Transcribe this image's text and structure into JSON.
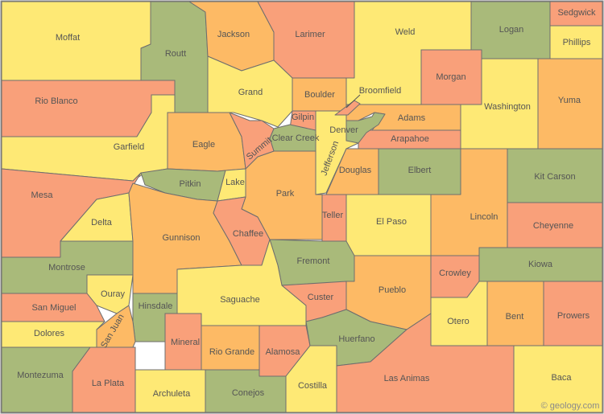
{
  "palette": {
    "Y": "#FEE975",
    "O": "#FDBA65",
    "S": "#F9A07A",
    "G": "#A9BA7A",
    "border": "#6e6e6e",
    "label": "#555555"
  },
  "copyright": "© geology.com",
  "counties": [
    {
      "name": "Moffat",
      "fill": "Y"
    },
    {
      "name": "Routt",
      "fill": "G"
    },
    {
      "name": "Jackson",
      "fill": "O"
    },
    {
      "name": "Larimer",
      "fill": "S"
    },
    {
      "name": "Weld",
      "fill": "Y"
    },
    {
      "name": "Logan",
      "fill": "G"
    },
    {
      "name": "Sedgwick",
      "fill": "S"
    },
    {
      "name": "Phillips",
      "fill": "Y"
    },
    {
      "name": "Morgan",
      "fill": "S"
    },
    {
      "name": "Yuma",
      "fill": "O"
    },
    {
      "name": "Washington",
      "fill": "Y"
    },
    {
      "name": "Rio Blanco",
      "fill": "S"
    },
    {
      "name": "Garfield",
      "fill": "Y"
    },
    {
      "name": "Grand",
      "fill": "Y"
    },
    {
      "name": "Boulder",
      "fill": "O"
    },
    {
      "name": "Broomfield",
      "fill": "S"
    },
    {
      "name": "Gilpin",
      "fill": "S"
    },
    {
      "name": "Clear Creek",
      "fill": "G"
    },
    {
      "name": "Jefferson",
      "fill": "Y"
    },
    {
      "name": "Denver",
      "fill": "G"
    },
    {
      "name": "Adams",
      "fill": "O"
    },
    {
      "name": "Arapahoe",
      "fill": "S"
    },
    {
      "name": "Eagle",
      "fill": "O"
    },
    {
      "name": "Summit",
      "fill": "S"
    },
    {
      "name": "Douglas",
      "fill": "O"
    },
    {
      "name": "Elbert",
      "fill": "G"
    },
    {
      "name": "Kit Carson",
      "fill": "G"
    },
    {
      "name": "Mesa",
      "fill": "S"
    },
    {
      "name": "Pitkin",
      "fill": "G"
    },
    {
      "name": "Lake",
      "fill": "Y"
    },
    {
      "name": "Park",
      "fill": "O"
    },
    {
      "name": "Teller",
      "fill": "S"
    },
    {
      "name": "El Paso",
      "fill": "Y"
    },
    {
      "name": "Lincoln",
      "fill": "O"
    },
    {
      "name": "Cheyenne",
      "fill": "S"
    },
    {
      "name": "Delta",
      "fill": "Y"
    },
    {
      "name": "Gunnison",
      "fill": "O"
    },
    {
      "name": "Chaffee",
      "fill": "S"
    },
    {
      "name": "Fremont",
      "fill": "G"
    },
    {
      "name": "Montrose",
      "fill": "G"
    },
    {
      "name": "Ouray",
      "fill": "Y"
    },
    {
      "name": "San Miguel",
      "fill": "S"
    },
    {
      "name": "Hinsdale",
      "fill": "G"
    },
    {
      "name": "Saguache",
      "fill": "Y"
    },
    {
      "name": "Custer",
      "fill": "S"
    },
    {
      "name": "Pueblo",
      "fill": "O"
    },
    {
      "name": "Crowley",
      "fill": "S"
    },
    {
      "name": "Kiowa",
      "fill": "G"
    },
    {
      "name": "Dolores",
      "fill": "Y"
    },
    {
      "name": "San Juan",
      "fill": "O"
    },
    {
      "name": "Mineral",
      "fill": "S"
    },
    {
      "name": "Rio Grande",
      "fill": "O"
    },
    {
      "name": "Alamosa",
      "fill": "S"
    },
    {
      "name": "Huerfano",
      "fill": "G"
    },
    {
      "name": "Otero",
      "fill": "Y"
    },
    {
      "name": "Bent",
      "fill": "O"
    },
    {
      "name": "Prowers",
      "fill": "S"
    },
    {
      "name": "Montezuma",
      "fill": "G"
    },
    {
      "name": "La Plata",
      "fill": "S"
    },
    {
      "name": "Archuleta",
      "fill": "Y"
    },
    {
      "name": "Conejos",
      "fill": "G"
    },
    {
      "name": "Costilla",
      "fill": "Y"
    },
    {
      "name": "Las Animas",
      "fill": "S"
    },
    {
      "name": "Baca",
      "fill": "Y"
    }
  ]
}
